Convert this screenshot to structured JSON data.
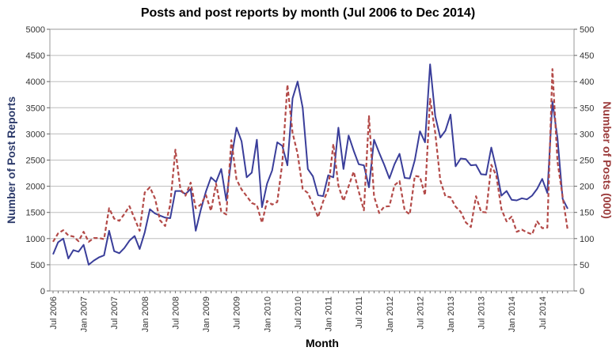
{
  "chart_data": {
    "type": "line",
    "title": "Posts and post reports by month (Jul 2006 to Dec 2014)",
    "xlabel": "Month",
    "ylabel": "Number of Post Reports",
    "y2label": "Number of Posts (000)",
    "ylim": [
      0,
      5000
    ],
    "y2lim": [
      0,
      500
    ],
    "yticks": [
      "0",
      "500",
      "1000",
      "1500",
      "2000",
      "2500",
      "3000",
      "3500",
      "4000",
      "4500",
      "5000"
    ],
    "y2ticks": [
      "0",
      "50",
      "100",
      "150",
      "200",
      "250",
      "300",
      "350",
      "400",
      "450",
      "500"
    ],
    "xtick_labels": [
      "Jul 2006",
      "Jan 2007",
      "Jul 2007",
      "Jan 2008",
      "Jul 2008",
      "Jan 2009",
      "Jul 2009",
      "Jan 2010",
      "Jul 2010",
      "Jan 2011",
      "Jul 2011",
      "Jan 2012",
      "Jul 2012",
      "Jan 2013",
      "Jul 2013",
      "Jan 2014",
      "Jul 2014"
    ],
    "grid": true,
    "colors": {
      "reports": "#3a3e9a",
      "posts": "#b34a48",
      "grid": "#bdbdbd",
      "axis_left": "#2d3b6b",
      "axis_right": "#9b3b3b"
    },
    "series": [
      {
        "axis": "left",
        "style": "solid",
        "values": [
          700,
          930,
          1000,
          620,
          780,
          750,
          880,
          500,
          580,
          640,
          680,
          1150,
          760,
          720,
          820,
          960,
          1050,
          800,
          1120,
          1560,
          1480,
          1440,
          1400,
          1390,
          1910,
          1910,
          1850,
          1950,
          1150,
          1550,
          1900,
          2170,
          2080,
          2330,
          1730,
          2530,
          3120,
          2860,
          2170,
          2260,
          2890,
          1600,
          2050,
          2300,
          2840,
          2770,
          2400,
          3680,
          4000,
          3500,
          2330,
          2190,
          1830,
          1810,
          2210,
          2170,
          3120,
          2330,
          2970,
          2680,
          2420,
          2400,
          1980,
          2890,
          2640,
          2410,
          2150,
          2420,
          2620,
          2160,
          2150,
          2500,
          3050,
          2840,
          4330,
          3340,
          2930,
          3060,
          3370,
          2380,
          2530,
          2520,
          2400,
          2410,
          2230,
          2220,
          2740,
          2330,
          1820,
          1910,
          1740,
          1730,
          1770,
          1750,
          1820,
          1950,
          2140,
          1870,
          3620,
          2920,
          1760,
          1570
        ]
      },
      {
        "axis": "right",
        "style": "dashed",
        "values": [
          94,
          110,
          116,
          106,
          104,
          95,
          113,
          94,
          101,
          101,
          99,
          158,
          138,
          134,
          147,
          162,
          138,
          115,
          188,
          198,
          177,
          135,
          124,
          165,
          270,
          194,
          182,
          207,
          158,
          165,
          183,
          153,
          205,
          152,
          146,
          288,
          213,
          194,
          181,
          168,
          164,
          130,
          172,
          165,
          170,
          245,
          394,
          302,
          262,
          195,
          187,
          166,
          141,
          171,
          193,
          281,
          201,
          172,
          200,
          228,
          190,
          154,
          334,
          181,
          149,
          161,
          162,
          202,
          210,
          154,
          146,
          220,
          218,
          183,
          367,
          302,
          211,
          181,
          179,
          161,
          151,
          131,
          122,
          181,
          151,
          150,
          241,
          220,
          156,
          133,
          142,
          113,
          117,
          112,
          108,
          133,
          120,
          121,
          424,
          247,
          180,
          116
        ]
      }
    ]
  }
}
